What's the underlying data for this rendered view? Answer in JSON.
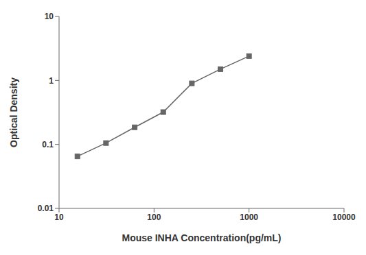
{
  "chart_data": {
    "type": "line",
    "x": [
      15.6,
      31.2,
      62.5,
      125,
      250,
      500,
      1000
    ],
    "values": [
      0.065,
      0.105,
      0.185,
      0.32,
      0.9,
      1.5,
      2.4
    ],
    "xlabel": "Mouse INHA Concentration(pg/mL)",
    "ylabel": "Optical Density",
    "xlim": [
      10,
      10000
    ],
    "ylim": [
      0.01,
      10
    ],
    "xticks": [
      10,
      100,
      1000,
      10000
    ],
    "yticks": [
      0.01,
      0.1,
      1,
      10
    ],
    "log": true,
    "grid": false,
    "color": "#666666",
    "marker": "square"
  }
}
